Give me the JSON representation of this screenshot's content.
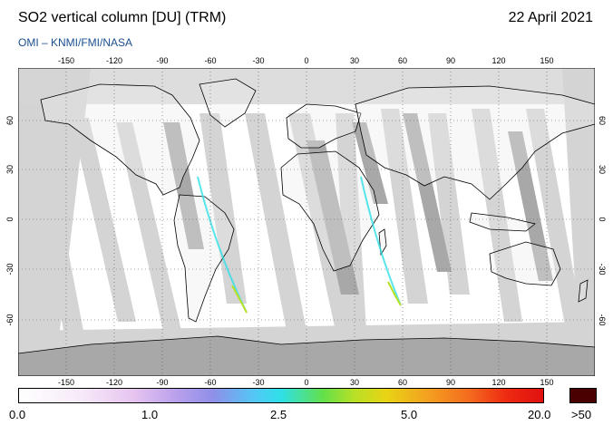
{
  "header": {
    "title": "SO2 vertical column [DU] (TRM)",
    "date": "22 April 2021",
    "source": "OMI  –  KNMI/FMI/NASA"
  },
  "map": {
    "projection": "equirectangular",
    "lon_ticks": [
      "-150",
      "-120",
      "-90",
      "-60",
      "-30",
      "0",
      "30",
      "60",
      "90",
      "120",
      "150"
    ],
    "lat_ticks": [
      "60",
      "30",
      "0",
      "-30",
      "-60"
    ],
    "colors": {
      "ocean_background": "#ffffff",
      "swath_light": "#d4d4d4",
      "swath_dark": "#a8a8a8",
      "land_no_data": "#a8a8a8",
      "coastline": "#000000",
      "grid": "#555555"
    }
  },
  "colorbar": {
    "labels": [
      "0.0",
      "1.0",
      "2.5",
      "5.0",
      "20.0",
      ">50"
    ],
    "colors": [
      "#ffffff",
      "#e6c4f0",
      "#8f8fe8",
      "#2ee0e8",
      "#63e04a",
      "#e8d414",
      "#f46a1e",
      "#e01010",
      "#4a0000"
    ]
  }
}
